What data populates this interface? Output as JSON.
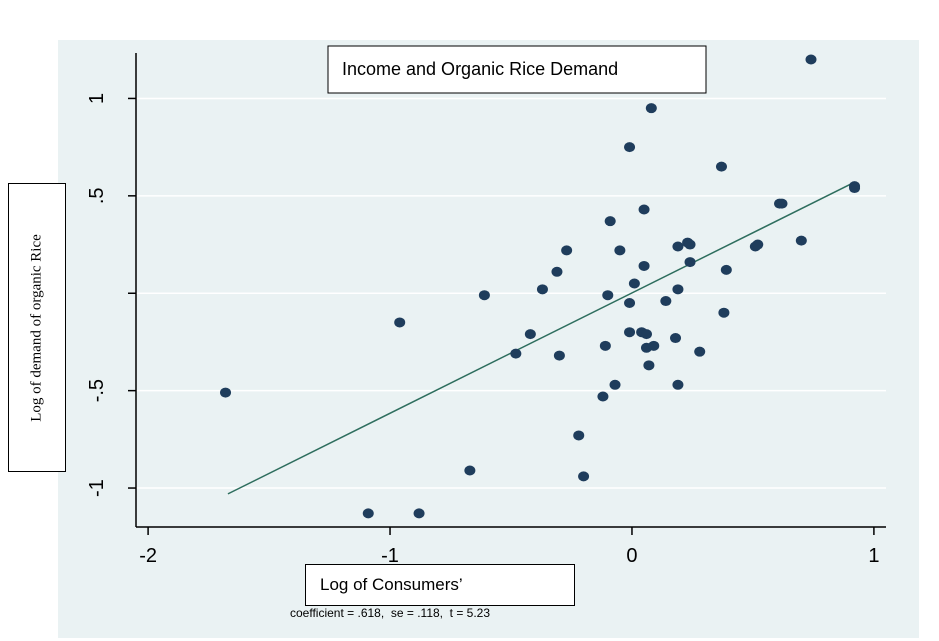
{
  "chart_data": {
    "type": "scatter",
    "title": "Income and Organic Rice Demand",
    "xlabel": "Log of Consumers’",
    "ylabel": "Log of demand of organic Rice",
    "note": "coefficient = .618,  se = .118,  t = 5.23",
    "xlim": [
      -2.05,
      1.05
    ],
    "ylim": [
      -1.2,
      1.3
    ],
    "x_ticks": [
      {
        "value": -2,
        "label": "-2"
      },
      {
        "value": -1,
        "label": "-1"
      },
      {
        "value": 0,
        "label": "0"
      },
      {
        "value": 1,
        "label": "1"
      }
    ],
    "y_ticks": [
      {
        "value": 1,
        "label": "1"
      },
      {
        "value": 0.5,
        "label": ".5"
      },
      {
        "value": 0,
        "label": ""
      },
      {
        "value": -0.5,
        "label": "-.5"
      },
      {
        "value": -1,
        "label": "-1"
      }
    ],
    "grid": true,
    "colors": {
      "points": "#1f3d5c",
      "fit_line": "#2e6e5e",
      "plot_bg": "#eaf2f3",
      "grid": "#ffffff"
    },
    "fit_line": {
      "x": [
        -1.67,
        0.92
      ],
      "y": [
        -1.03,
        0.57
      ]
    },
    "points": [
      {
        "x": -1.68,
        "y": -0.51
      },
      {
        "x": -1.09,
        "y": -1.13
      },
      {
        "x": -0.88,
        "y": -1.13
      },
      {
        "x": -0.96,
        "y": -0.15
      },
      {
        "x": -0.67,
        "y": -0.91
      },
      {
        "x": -0.61,
        "y": -0.01
      },
      {
        "x": -0.48,
        "y": -0.31
      },
      {
        "x": -0.42,
        "y": -0.21
      },
      {
        "x": -0.37,
        "y": 0.02
      },
      {
        "x": -0.31,
        "y": 0.11
      },
      {
        "x": -0.3,
        "y": -0.32
      },
      {
        "x": -0.27,
        "y": 0.22
      },
      {
        "x": -0.22,
        "y": -0.73
      },
      {
        "x": -0.2,
        "y": -0.94
      },
      {
        "x": -0.12,
        "y": -0.53
      },
      {
        "x": -0.11,
        "y": -0.27
      },
      {
        "x": -0.1,
        "y": -0.01
      },
      {
        "x": -0.09,
        "y": 0.37
      },
      {
        "x": -0.07,
        "y": -0.47
      },
      {
        "x": -0.05,
        "y": 0.22
      },
      {
        "x": -0.01,
        "y": -0.05
      },
      {
        "x": -0.01,
        "y": 0.75
      },
      {
        "x": -0.01,
        "y": -0.2
      },
      {
        "x": 0.01,
        "y": 0.05
      },
      {
        "x": 0.04,
        "y": -0.2
      },
      {
        "x": 0.05,
        "y": 0.14
      },
      {
        "x": 0.05,
        "y": 0.43
      },
      {
        "x": 0.06,
        "y": -0.21
      },
      {
        "x": 0.06,
        "y": -0.28
      },
      {
        "x": 0.07,
        "y": -0.37
      },
      {
        "x": 0.08,
        "y": 0.95
      },
      {
        "x": 0.09,
        "y": -0.27
      },
      {
        "x": 0.14,
        "y": -0.04
      },
      {
        "x": 0.18,
        "y": -0.23
      },
      {
        "x": 0.19,
        "y": 0.24
      },
      {
        "x": 0.19,
        "y": 0.02
      },
      {
        "x": 0.19,
        "y": -0.47
      },
      {
        "x": 0.23,
        "y": 0.26
      },
      {
        "x": 0.24,
        "y": 0.25
      },
      {
        "x": 0.24,
        "y": 0.16
      },
      {
        "x": 0.28,
        "y": -0.3
      },
      {
        "x": 0.37,
        "y": 0.65
      },
      {
        "x": 0.38,
        "y": -0.1
      },
      {
        "x": 0.39,
        "y": 0.12
      },
      {
        "x": 0.51,
        "y": 0.24
      },
      {
        "x": 0.52,
        "y": 0.25
      },
      {
        "x": 0.61,
        "y": 0.46
      },
      {
        "x": 0.62,
        "y": 0.46
      },
      {
        "x": 0.7,
        "y": 0.27
      },
      {
        "x": 0.74,
        "y": 1.2
      },
      {
        "x": 0.92,
        "y": 0.55
      },
      {
        "x": 0.92,
        "y": 0.54
      }
    ]
  }
}
